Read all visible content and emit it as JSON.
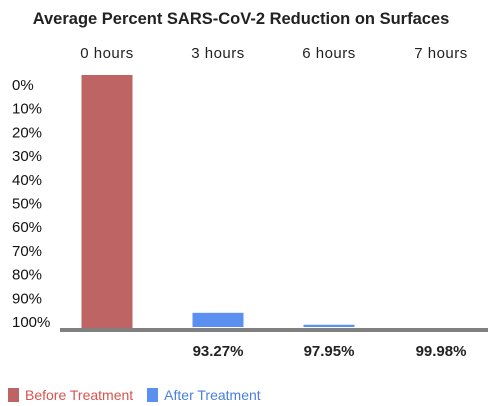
{
  "chart_data": {
    "type": "bar",
    "title": "Average Percent SARS-CoV-2 Reduction on Surfaces",
    "categories": [
      "0 hours",
      "3 hours",
      "6 hours",
      "7 hours"
    ],
    "y_ticks": [
      "0%",
      "10%",
      "20%",
      "30%",
      "40%",
      "50%",
      "60%",
      "70%",
      "80%",
      "90%",
      "100%"
    ],
    "ylim": [
      0,
      100
    ],
    "y_inverted": true,
    "grid": false,
    "legend_position": "bottom-left",
    "series": [
      {
        "name": "Before Treatment",
        "color": "#bf6464",
        "values": [
          0,
          null,
          null,
          null
        ]
      },
      {
        "name": "After Treatment",
        "color": "#5b8ff0",
        "values": [
          null,
          93.27,
          97.95,
          99.98
        ]
      }
    ],
    "data_labels": [
      "",
      "93.27%",
      "97.95%",
      "99.98%"
    ],
    "legend_label_colors": [
      "#d9534f",
      "#4a7fe0"
    ],
    "baseline_color": "#808080"
  }
}
